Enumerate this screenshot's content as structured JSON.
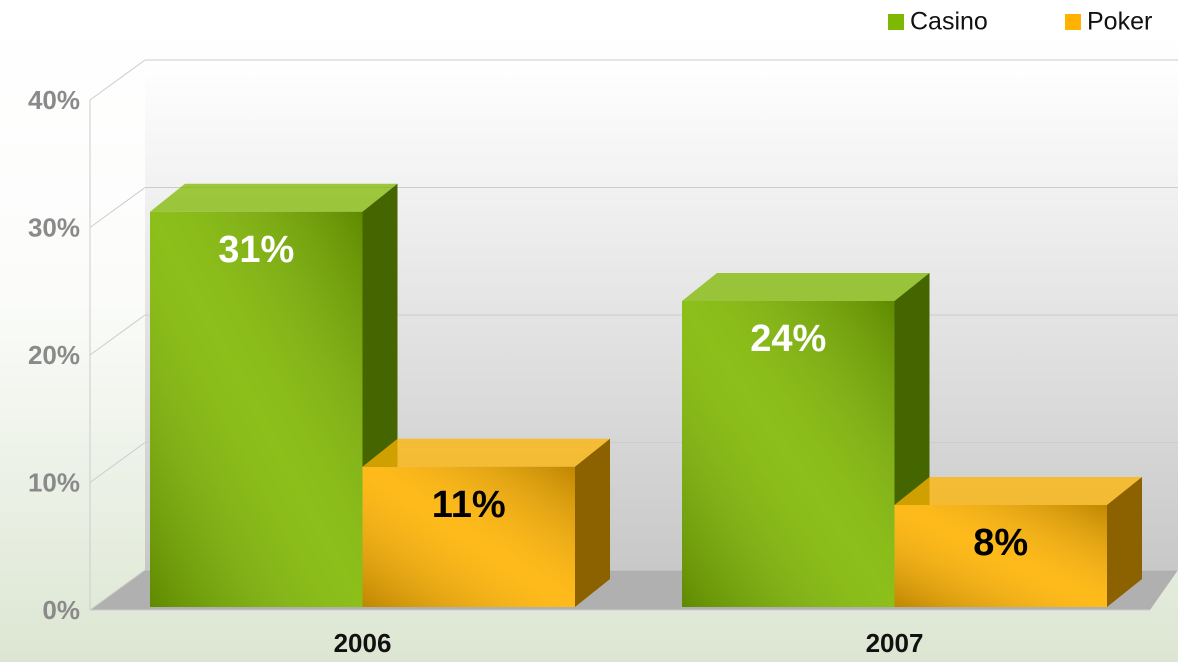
{
  "chart_data": {
    "type": "bar3d",
    "categories": [
      "2006",
      "2007"
    ],
    "series": [
      {
        "name": "Casino",
        "color": "#7fb800",
        "values": [
          31,
          24
        ],
        "value_labels": [
          "31%",
          "24%"
        ]
      },
      {
        "name": "Poker",
        "color": "#ffb300",
        "values": [
          11,
          8
        ],
        "value_labels": [
          "11%",
          "8%"
        ]
      }
    ],
    "ylim": [
      0,
      40
    ],
    "yticks": [
      {
        "value": 0,
        "label": "0%"
      },
      {
        "value": 10,
        "label": "10%"
      },
      {
        "value": 20,
        "label": "20%"
      },
      {
        "value": 30,
        "label": "30%"
      },
      {
        "value": 40,
        "label": "40%"
      }
    ],
    "grid": true,
    "legend": "top-right"
  }
}
